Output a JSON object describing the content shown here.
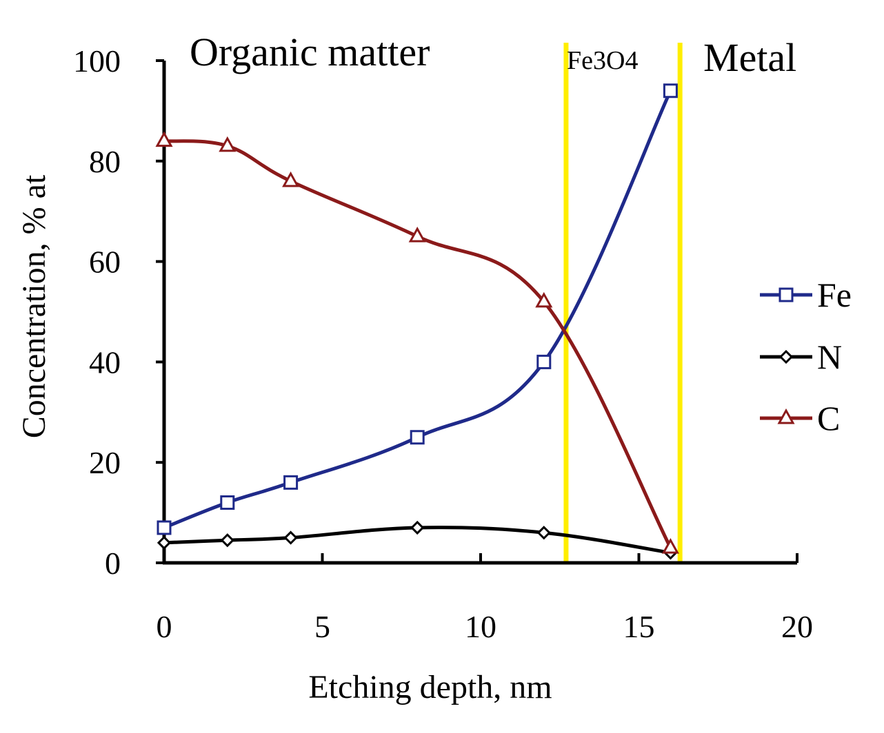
{
  "chart_data": {
    "type": "line",
    "title": "",
    "xlabel": "Etching depth, nm",
    "ylabel": "Concentration, % at",
    "xlim": [
      0,
      20
    ],
    "ylim": [
      0,
      100
    ],
    "xticks": [
      0,
      5,
      10,
      15,
      20
    ],
    "yticks": [
      0,
      20,
      40,
      60,
      80,
      100
    ],
    "x": [
      0,
      2,
      4,
      8,
      12,
      16
    ],
    "series": [
      {
        "name": "Fe",
        "marker": "square",
        "color": "#1f2a8a",
        "values": [
          7,
          12,
          16,
          25,
          40,
          94
        ]
      },
      {
        "name": "N",
        "marker": "diamond",
        "color": "#000000",
        "values": [
          4,
          4.5,
          5,
          7,
          6,
          2
        ]
      },
      {
        "name": "C",
        "marker": "triangle",
        "color": "#8b1a1a",
        "values": [
          84,
          83,
          76,
          65,
          52,
          3
        ]
      }
    ],
    "region_lines": {
      "x": [
        12.7,
        16.3
      ],
      "color": "#ffee00"
    },
    "region_labels": [
      "Organic matter",
      "Fe3O4",
      "Metal"
    ],
    "legend_position": "right"
  }
}
